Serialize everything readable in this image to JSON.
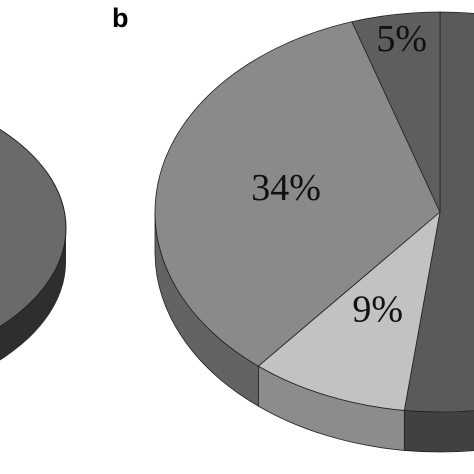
{
  "chart_data": {
    "type": "pie",
    "panel_label": "b",
    "values": [
      52,
      9,
      34,
      5
    ],
    "value_labels": [
      null,
      "9%",
      "34%",
      "5%"
    ],
    "colors": [
      "#5a5a5a",
      "#c2c2c2",
      "#8a8a8a",
      "#5e5e5e"
    ],
    "three_d": true
  }
}
